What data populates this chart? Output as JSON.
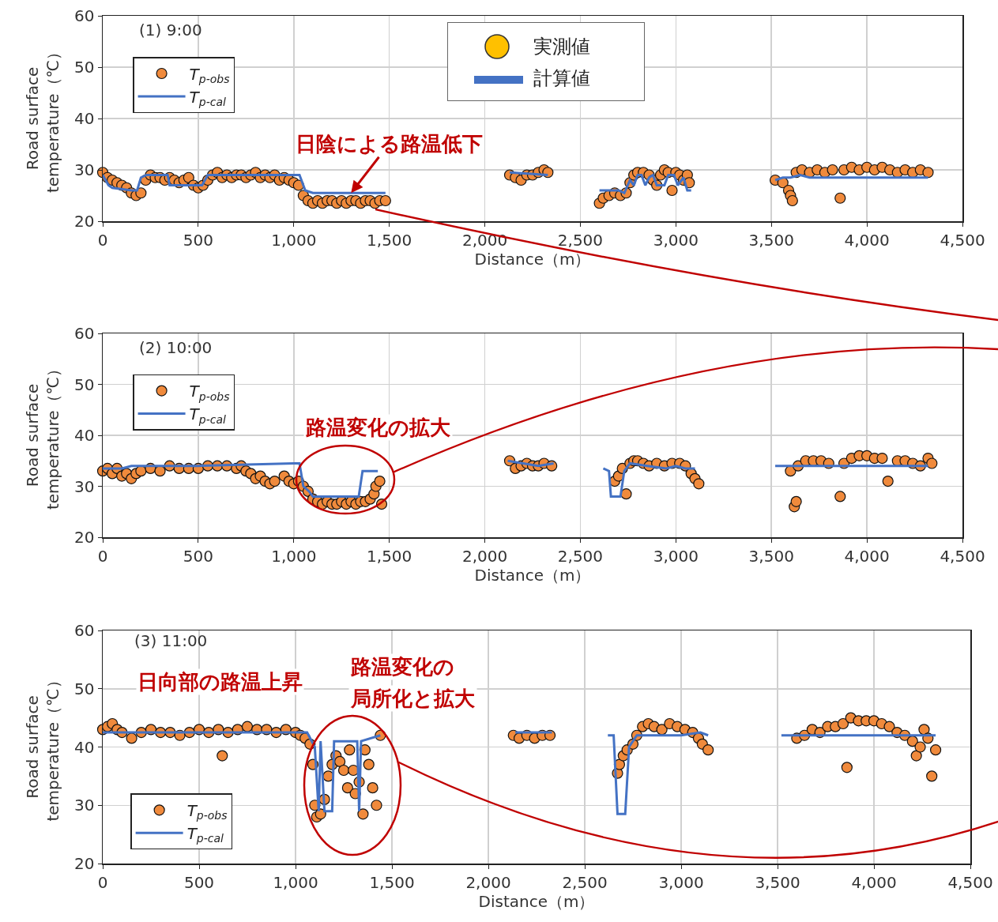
{
  "chart_data": [
    {
      "type": "scatter",
      "line_style": "solid",
      "grid": true,
      "legend": "top left",
      "xlabel": "Distance（m）",
      "ylabel": "Road surface\ntemperature（℃）",
      "xlim": [
        0,
        4500
      ],
      "ylim": [
        20,
        60
      ],
      "xticks": [
        {
          "value": 0,
          "label": "0"
        },
        {
          "value": 500,
          "label": "500"
        },
        {
          "value": 1000,
          "label": "1,000"
        },
        {
          "value": 1500,
          "label": "1,500"
        },
        {
          "value": 2000,
          "label": "2,000"
        },
        {
          "value": 2500,
          "label": "2,500"
        },
        {
          "value": 3000,
          "label": "3,000"
        },
        {
          "value": 3500,
          "label": "3,500"
        },
        {
          "value": 4000,
          "label": "4,000"
        },
        {
          "value": 4500,
          "label": "4,500"
        }
      ],
      "yticks": [
        20,
        30,
        40,
        50,
        60
      ],
      "annotations": [
        "(1) 9:00",
        {
          "text": "日陰による路温低下",
          "x": 1300,
          "y": 25.5
        },
        "実測値",
        "計算値"
      ],
      "series": [
        {
          "name": "T$_{p-obs}$",
          "color": "#f08a3c",
          "marker": "circle",
          "x": [
            0,
            25,
            50,
            75,
            100,
            125,
            150,
            175,
            200,
            225,
            250,
            275,
            300,
            325,
            350,
            375,
            400,
            425,
            450,
            475,
            500,
            525,
            550,
            575,
            600,
            625,
            650,
            675,
            700,
            725,
            750,
            775,
            800,
            825,
            850,
            875,
            900,
            925,
            950,
            975,
            1000,
            1025,
            1050,
            1075,
            1100,
            1125,
            1150,
            1175,
            1200,
            1225,
            1250,
            1275,
            1300,
            1325,
            1350,
            1375,
            1400,
            1425,
            1450,
            1480,
            2130,
            2160,
            2190,
            2220,
            2250,
            2280,
            2310,
            2330,
            2600,
            2620,
            2650,
            2680,
            2710,
            2740,
            2760,
            2780,
            2800,
            2830,
            2860,
            2880,
            2900,
            2920,
            2940,
            2960,
            2980,
            3000,
            3020,
            3040,
            3060,
            3070,
            3520,
            3560,
            3590,
            3600,
            3610,
            3630,
            3660,
            3700,
            3740,
            3780,
            3820,
            3860,
            3880,
            3920,
            3960,
            4000,
            4040,
            4080,
            4120,
            4160,
            4200,
            4240,
            4280,
            4320
          ],
          "values": [
            29.5,
            28.5,
            28,
            27.5,
            27,
            26.5,
            25.5,
            25,
            25.5,
            28,
            29,
            28.5,
            28.5,
            28,
            28.5,
            28,
            27.5,
            28,
            28.5,
            27,
            26.5,
            27,
            28,
            29,
            29.5,
            28.5,
            29,
            28.5,
            29,
            29,
            28.5,
            29,
            29.5,
            28.5,
            29,
            28.5,
            29,
            28,
            28.5,
            28,
            27.5,
            27,
            25,
            24,
            23.5,
            24,
            23.5,
            24,
            24,
            23.5,
            24,
            23.5,
            24,
            24,
            23.5,
            24,
            24,
            23.5,
            24,
            24,
            29,
            28.5,
            28,
            29,
            29,
            29.5,
            30,
            29.5,
            23.5,
            24.5,
            25,
            25.5,
            25,
            25.5,
            27.5,
            29,
            29.5,
            29.5,
            29,
            28,
            27,
            29,
            30,
            29.5,
            26,
            29.5,
            29,
            28,
            29,
            27.5,
            28,
            27.5,
            26,
            25,
            24,
            29.5,
            30,
            29.5,
            30,
            29.5,
            30,
            24.5,
            30,
            30.5,
            30,
            30.5,
            30,
            30.5,
            30,
            29.5,
            30,
            29.5,
            30,
            29.5
          ]
        },
        {
          "name": "T$_{p-cal}$",
          "type": "line",
          "color": "#4472c4",
          "marker": "none",
          "x": [
            0,
            30,
            50,
            150,
            180,
            200,
            230,
            340,
            350,
            500,
            520,
            550,
            1000,
            1030,
            1060,
            1100,
            1480,
            1800,
            2130,
            2330,
            2450,
            2600,
            2700,
            2730,
            2760,
            2780,
            2800,
            2820,
            2840,
            2860,
            2880,
            2900,
            2940,
            2960,
            2990,
            3010,
            3040,
            3060,
            3080,
            3300,
            3520,
            3560,
            3600,
            3650,
            3700,
            4320
          ],
          "values": [
            29,
            27,
            26.5,
            26,
            26,
            28.5,
            29,
            29,
            27,
            27,
            27,
            29,
            29,
            29,
            26,
            25.5,
            25.5,
            null,
            29.5,
            29,
            null,
            26,
            26,
            25.5,
            28,
            27,
            29,
            29,
            27,
            28.5,
            29,
            27,
            27,
            29,
            29,
            27,
            28.5,
            26,
            26,
            null,
            28,
            28.5,
            28.5,
            29,
            28.5,
            28.5
          ]
        }
      ]
    },
    {
      "type": "scatter",
      "line_style": "solid",
      "grid": true,
      "legend": "top left",
      "xlabel": "Distance（m）",
      "ylabel": "Road surface\ntemperature（℃）",
      "xlim": [
        0,
        4500
      ],
      "ylim": [
        20,
        60
      ],
      "xticks": [
        {
          "value": 0,
          "label": "0"
        },
        {
          "value": 500,
          "label": "500"
        },
        {
          "value": 1000,
          "label": "1,000"
        },
        {
          "value": 1500,
          "label": "1,500"
        },
        {
          "value": 2000,
          "label": "2,000"
        },
        {
          "value": 2500,
          "label": "2,500"
        },
        {
          "value": 3000,
          "label": "3,000"
        },
        {
          "value": 3500,
          "label": "3,500"
        },
        {
          "value": 4000,
          "label": "4,000"
        },
        {
          "value": 4500,
          "label": "4,500"
        }
      ],
      "yticks": [
        20,
        30,
        40,
        50,
        60
      ],
      "annotations": [
        "(2) 10:00",
        "路温変化の拡大"
      ],
      "series": [
        {
          "name": "T$_{p-obs}$",
          "color": "#f08a3c",
          "marker": "circle",
          "x": [
            0,
            25,
            50,
            75,
            100,
            125,
            150,
            175,
            200,
            250,
            300,
            350,
            400,
            450,
            500,
            550,
            600,
            650,
            700,
            725,
            750,
            775,
            800,
            825,
            850,
            875,
            900,
            950,
            975,
            1000,
            1025,
            1050,
            1075,
            1100,
            1125,
            1150,
            1175,
            1200,
            1225,
            1250,
            1275,
            1300,
            1325,
            1350,
            1375,
            1400,
            1420,
            1430,
            1450,
            1460,
            2130,
            2160,
            2190,
            2220,
            2250,
            2280,
            2310,
            2350,
            2680,
            2700,
            2720,
            2740,
            2760,
            2780,
            2800,
            2830,
            2860,
            2900,
            2940,
            2980,
            3020,
            3050,
            3080,
            3100,
            3120,
            3600,
            3620,
            3630,
            3640,
            3680,
            3720,
            3760,
            3800,
            3860,
            3880,
            3920,
            3960,
            4000,
            4040,
            4080,
            4110,
            4160,
            4200,
            4240,
            4280,
            4320,
            4340
          ],
          "values": [
            33,
            33.5,
            32.5,
            33.5,
            32,
            32.5,
            31.5,
            32.5,
            33,
            33.5,
            33,
            34,
            33.5,
            33.5,
            33.5,
            34,
            34,
            34,
            33.5,
            34,
            33,
            32.5,
            31.5,
            32,
            31,
            30.5,
            31,
            32,
            31,
            30.5,
            31,
            30,
            29,
            27.5,
            27,
            26.5,
            27,
            26.5,
            26.5,
            27,
            26.5,
            27,
            26.5,
            27,
            27,
            27.5,
            28.5,
            30,
            31,
            26.5,
            35,
            33.5,
            34,
            34.5,
            34,
            34,
            34.5,
            34,
            31,
            32,
            33.5,
            28.5,
            34.5,
            35,
            35,
            34.5,
            34,
            34.5,
            34,
            34.5,
            34.5,
            34,
            32.5,
            31.5,
            30.5,
            33,
            26,
            27,
            34,
            35,
            35,
            35,
            34.5,
            28,
            34.5,
            35.5,
            36,
            36,
            35.5,
            35.5,
            31,
            35,
            35,
            34.5,
            34,
            35.5,
            34.5
          ]
        },
        {
          "name": "T$_{p-cal}$",
          "type": "line",
          "color": "#4472c4",
          "marker": "none",
          "x": [
            0,
            100,
            150,
            500,
            1000,
            1030,
            1050,
            1080,
            1100,
            1340,
            1360,
            1400,
            1440,
            1800,
            2120,
            2200,
            2280,
            2360,
            2500,
            2620,
            2650,
            2660,
            2710,
            2730,
            2760,
            2850,
            2950,
            3000,
            3050,
            3100,
            3300,
            3520,
            3700,
            4320
          ],
          "values": [
            33.5,
            33.5,
            34,
            34,
            34.5,
            34.5,
            30,
            29,
            28,
            28,
            33,
            33,
            33,
            null,
            35,
            34.5,
            34,
            34.5,
            null,
            33.5,
            33,
            28,
            28,
            33,
            34.5,
            34,
            33.5,
            34,
            33.5,
            33.5,
            null,
            34,
            34,
            34
          ]
        }
      ]
    },
    {
      "type": "scatter",
      "line_style": "solid",
      "grid": true,
      "legend": "bottom left",
      "xlabel": "Distance（m）",
      "ylabel": "Road surface\ntemperature（℃）",
      "xlim": [
        0,
        4500
      ],
      "ylim": [
        20,
        60
      ],
      "xticks": [
        {
          "value": 0,
          "label": "0"
        },
        {
          "value": 500,
          "label": "500"
        },
        {
          "value": 1000,
          "label": "1,000"
        },
        {
          "value": 1500,
          "label": "1,500"
        },
        {
          "value": 2000,
          "label": "2,000"
        },
        {
          "value": 2500,
          "label": "2,500"
        },
        {
          "value": 3000,
          "label": "3,000"
        },
        {
          "value": 3500,
          "label": "3,500"
        },
        {
          "value": 4000,
          "label": "4,000"
        },
        {
          "value": 4500,
          "label": "4,500"
        }
      ],
      "yticks": [
        20,
        30,
        40,
        50,
        60
      ],
      "annotations": [
        "(3) 11:00",
        "日向部の路温上昇",
        "路温変化の",
        "局所化と拡大"
      ],
      "series": [
        {
          "name": "T$_{p-obs}$",
          "color": "#f08a3c",
          "marker": "circle",
          "x": [
            0,
            25,
            50,
            75,
            100,
            150,
            200,
            250,
            300,
            350,
            400,
            450,
            500,
            550,
            600,
            620,
            650,
            700,
            750,
            800,
            850,
            900,
            950,
            1000,
            1025,
            1050,
            1075,
            1090,
            1100,
            1110,
            1130,
            1150,
            1170,
            1190,
            1210,
            1230,
            1250,
            1270,
            1280,
            1300,
            1310,
            1330,
            1350,
            1360,
            1380,
            1400,
            1420,
            1440,
            2130,
            2160,
            2200,
            2240,
            2280,
            2320,
            2670,
            2680,
            2700,
            2720,
            2750,
            2770,
            2800,
            2830,
            2860,
            2900,
            2940,
            2980,
            3020,
            3060,
            3090,
            3110,
            3140,
            3600,
            3640,
            3680,
            3720,
            3760,
            3800,
            3840,
            3860,
            3880,
            3920,
            3960,
            4000,
            4040,
            4080,
            4120,
            4160,
            4200,
            4220,
            4240,
            4260,
            4280,
            4300,
            4320
          ],
          "values": [
            43,
            43.5,
            44,
            43,
            42.5,
            41.5,
            42.5,
            43,
            42.5,
            42.5,
            42,
            42.5,
            43,
            42.5,
            43,
            38.5,
            42.5,
            43,
            43.5,
            43,
            43,
            42.5,
            43,
            42.5,
            42,
            41.5,
            40.5,
            37,
            30,
            28,
            28.5,
            31,
            35,
            37,
            38.5,
            37.5,
            36,
            33,
            39.5,
            36,
            32,
            34,
            28.5,
            39.5,
            37,
            33,
            30,
            42,
            42,
            41.5,
            42,
            41.5,
            42,
            42,
            35.5,
            37,
            38.5,
            39.5,
            40.5,
            42,
            43.5,
            44,
            43.5,
            43,
            44,
            43.5,
            43,
            42.5,
            41.5,
            40.5,
            39.5,
            41.5,
            42,
            43,
            42.5,
            43.5,
            43.5,
            44,
            36.5,
            45,
            44.5,
            44.5,
            44.5,
            44,
            43.5,
            42.5,
            42,
            41,
            38.5,
            40,
            43,
            41.5,
            35,
            39.5
          ]
        },
        {
          "name": "T$_{p-cal}$",
          "type": "line",
          "color": "#4472c4",
          "marker": "none",
          "x": [
            0,
            1000,
            1060,
            1100,
            1120,
            1130,
            1150,
            1190,
            1200,
            1320,
            1330,
            1340,
            1440,
            1800,
            2140,
            2330,
            2500,
            2620,
            2650,
            2670,
            2710,
            2730,
            2770,
            2900,
            3000,
            3100,
            3140,
            3300,
            3520,
            4320
          ],
          "values": [
            42.5,
            42.5,
            42.5,
            40,
            29,
            41,
            29,
            29,
            41,
            41,
            29,
            41,
            42,
            null,
            42.5,
            42.5,
            null,
            42,
            42,
            28.5,
            28.5,
            40,
            42,
            42,
            42,
            42.5,
            42,
            null,
            42,
            42
          ]
        }
      ]
    }
  ]
}
